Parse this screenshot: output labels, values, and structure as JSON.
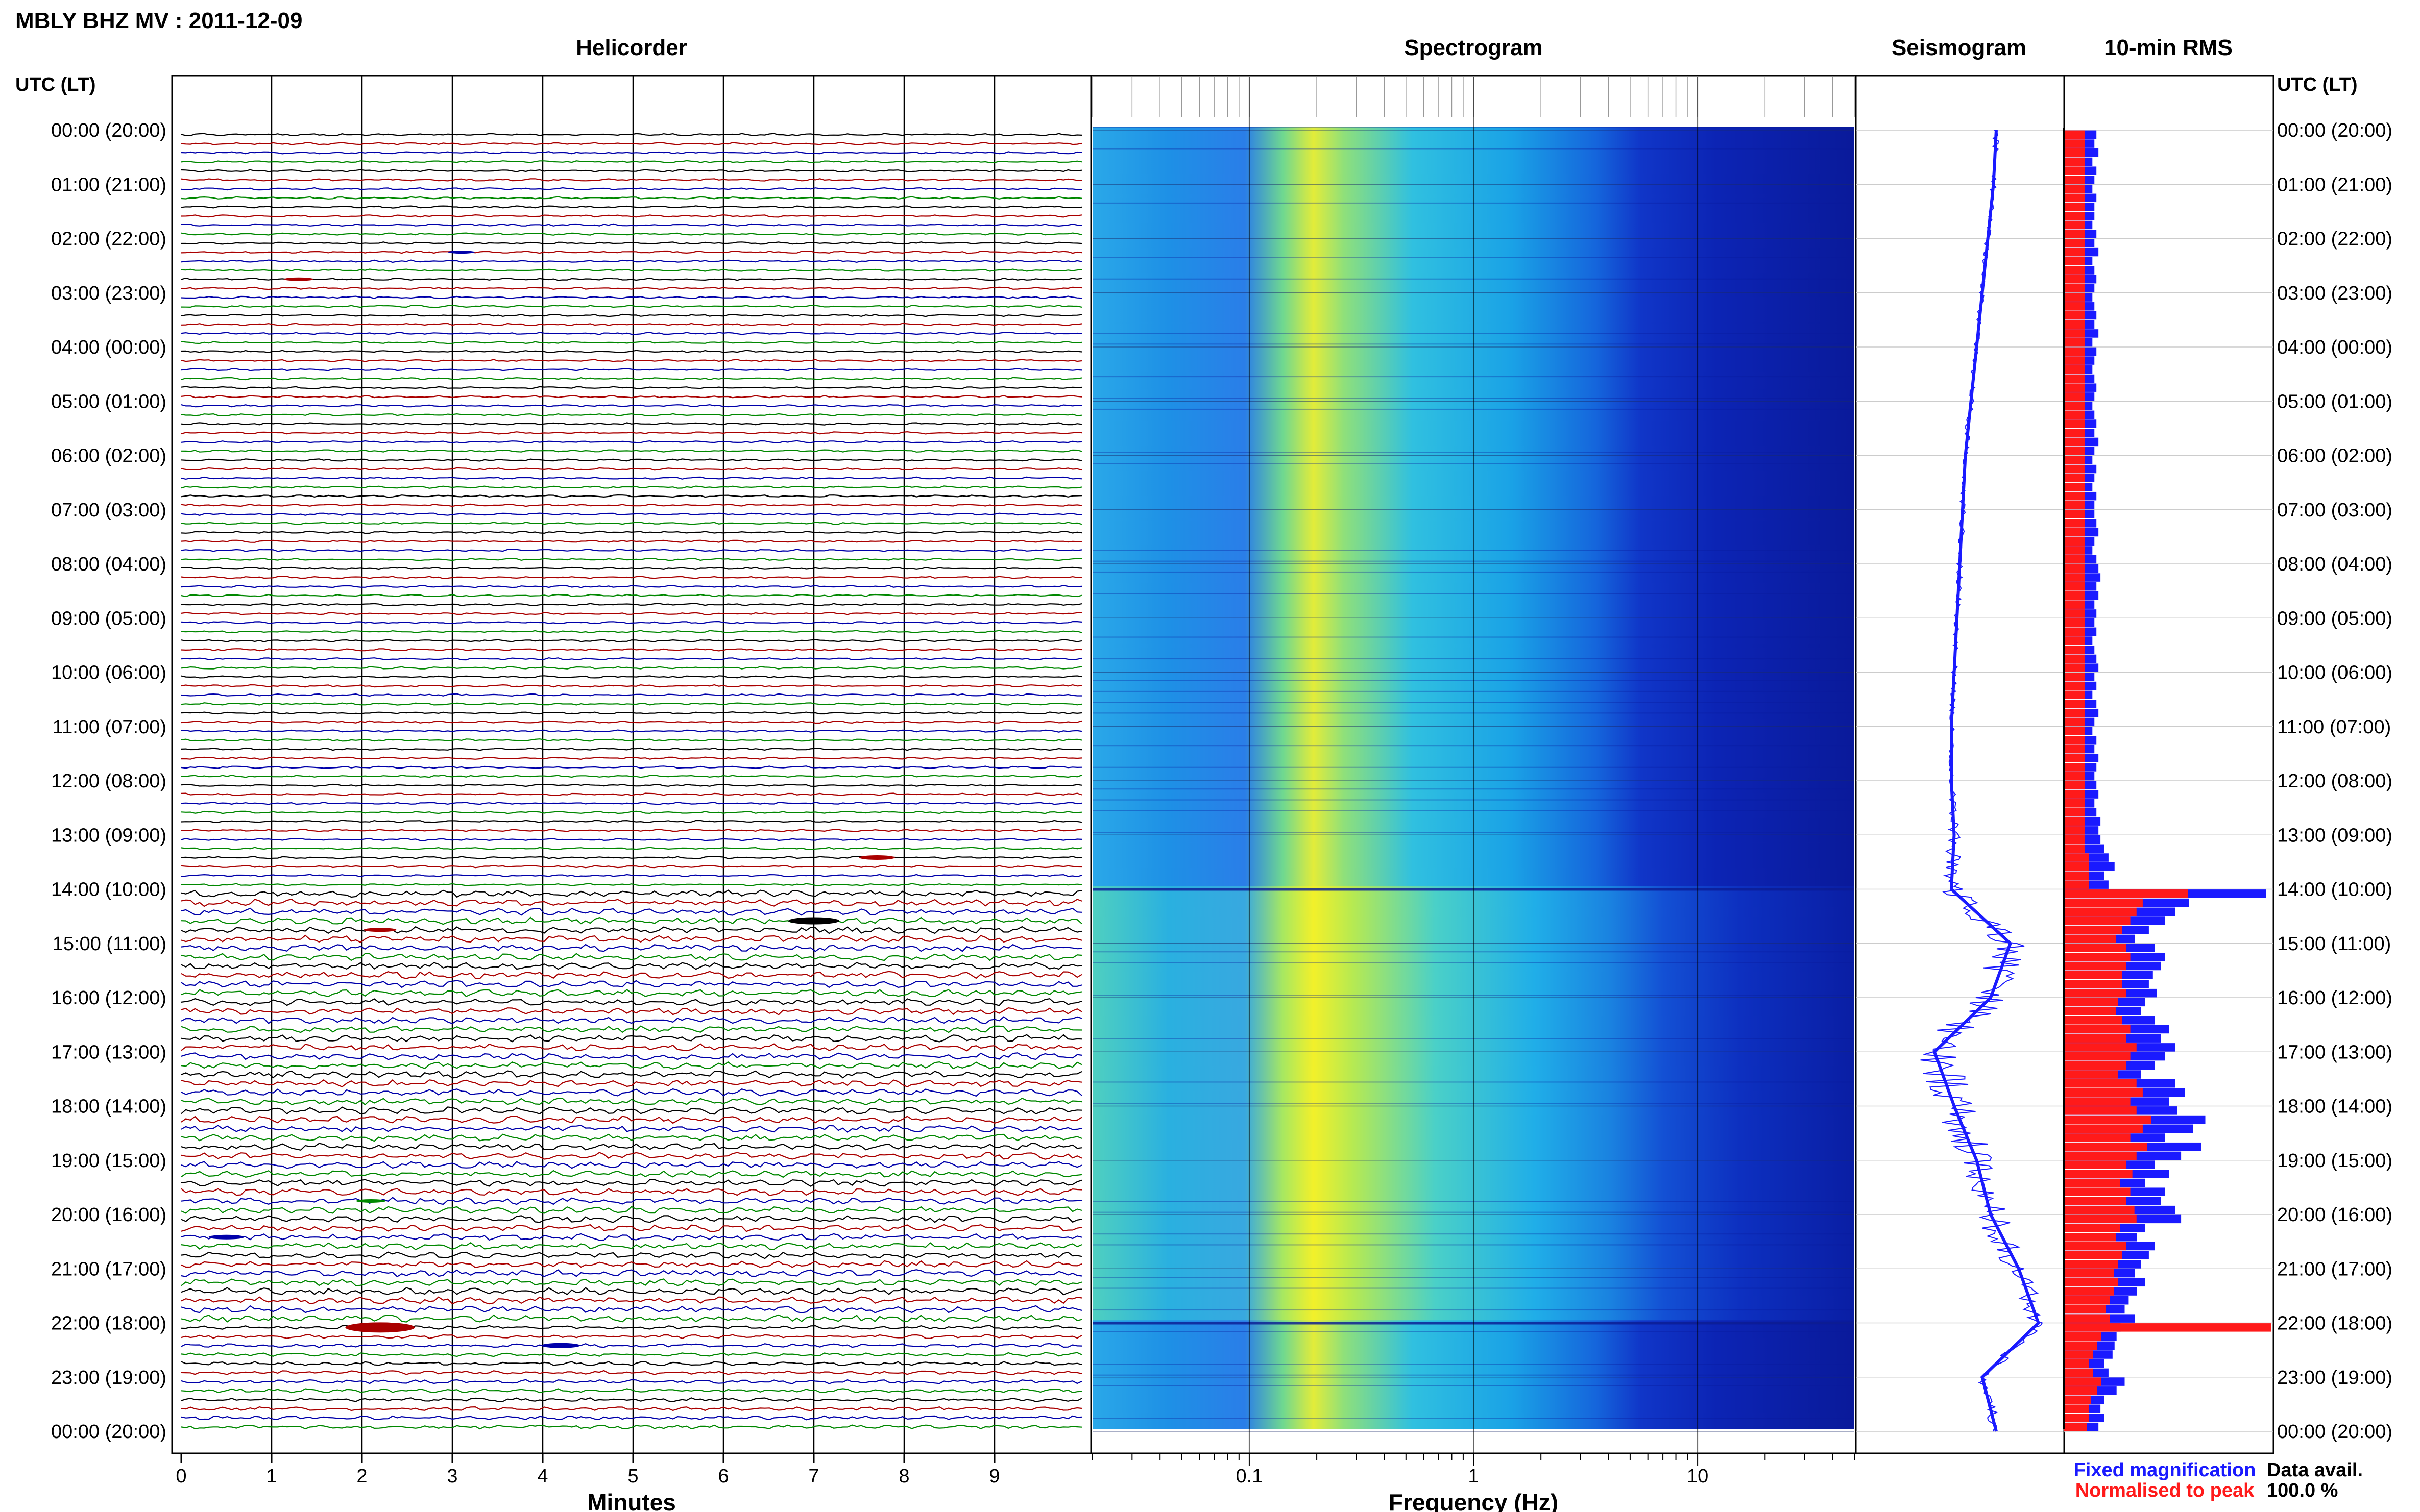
{
  "header": {
    "title": "MBLY BHZ MV : 2011-12-09",
    "utc_left": "UTC (LT)",
    "utc_right": "UTC (LT)"
  },
  "legend": {
    "fixed": "Fixed magnification",
    "normalised": "Normalised to peak",
    "avail_label": "Data avail.",
    "avail_value": "100.0 %"
  },
  "colors": {
    "fixed": "#1a1aff",
    "normalised": "#ff1a1a",
    "trace_black": "#000000",
    "trace_red": "#aa0000",
    "trace_blue": "#0000aa",
    "trace_green": "#008800"
  },
  "time_labels": [
    "00:00 (20:00)",
    "01:00 (21:00)",
    "02:00 (22:00)",
    "03:00 (23:00)",
    "04:00 (00:00)",
    "05:00 (01:00)",
    "06:00 (02:00)",
    "07:00 (03:00)",
    "08:00 (04:00)",
    "09:00 (05:00)",
    "10:00 (06:00)",
    "11:00 (07:00)",
    "12:00 (08:00)",
    "13:00 (09:00)",
    "14:00 (10:00)",
    "15:00 (11:00)",
    "16:00 (12:00)",
    "17:00 (13:00)",
    "18:00 (14:00)",
    "19:00 (15:00)",
    "20:00 (16:00)",
    "21:00 (17:00)",
    "22:00 (18:00)",
    "23:00 (19:00)",
    "00:00 (20:00)"
  ],
  "chart_data": [
    {
      "type": "line",
      "panel": "helicorder",
      "title": "Helicorder",
      "xlabel": "Minutes",
      "x_ticks": [
        "0",
        "1",
        "2",
        "3",
        "4",
        "5",
        "6",
        "7",
        "8",
        "9"
      ],
      "xlim": [
        0,
        10
      ],
      "rows": 144,
      "events": [
        {
          "row": 16,
          "minute": 1.3,
          "amplitude": 0.3,
          "color": "red"
        },
        {
          "row": 13,
          "minute": 3.1,
          "amplitude": 0.2,
          "color": "blue"
        },
        {
          "row": 80,
          "minute": 7.7,
          "amplitude": 0.5,
          "color": "red"
        },
        {
          "row": 87,
          "minute": 7.0,
          "amplitude": 1.0,
          "color": "black"
        },
        {
          "row": 88,
          "minute": 2.2,
          "amplitude": 0.4,
          "color": "red"
        },
        {
          "row": 118,
          "minute": 2.1,
          "amplitude": 0.3,
          "color": "green"
        },
        {
          "row": 122,
          "minute": 0.5,
          "amplitude": 0.5,
          "color": "blue"
        },
        {
          "row": 132,
          "minute": 2.2,
          "amplitude": 1.6,
          "color": "red"
        },
        {
          "row": 134,
          "minute": 4.2,
          "amplitude": 0.6,
          "color": "blue"
        }
      ]
    },
    {
      "type": "heatmap",
      "panel": "spectrogram",
      "title": "Spectrogram",
      "xlabel": "Frequency (Hz)",
      "x_scale": "log",
      "xlim": [
        0.02,
        50
      ],
      "x_ticks": [
        {
          "value": 0.1,
          "label": "0.1"
        },
        {
          "value": 1,
          "label": "1"
        },
        {
          "value": 10,
          "label": "10"
        }
      ],
      "peak_frequency_hz": 0.25,
      "high_activity_hours": [
        14,
        22
      ]
    },
    {
      "type": "line",
      "panel": "seismogram",
      "title": "Seismogram",
      "hourly_offset": [
        0.1,
        0.09,
        0.07,
        0.05,
        0.03,
        0.01,
        -0.01,
        -0.02,
        -0.03,
        -0.04,
        -0.05,
        -0.06,
        -0.06,
        -0.05,
        -0.06,
        0.15,
        0.08,
        -0.12,
        -0.05,
        0.03,
        0.08,
        0.18,
        0.25,
        0.05,
        0.1
      ],
      "noise": [
        0.01,
        0.01,
        0.01,
        0.01,
        0.01,
        0.01,
        0.01,
        0.01,
        0.01,
        0.01,
        0.01,
        0.01,
        0.01,
        0.02,
        0.04,
        0.06,
        0.07,
        0.08,
        0.08,
        0.06,
        0.06,
        0.05,
        0.03,
        0.02,
        0.02
      ]
    },
    {
      "type": "bar",
      "panel": "rms",
      "title": "10-min RMS",
      "orientation": "horizontal",
      "series": [
        {
          "name": "Fixed magnification",
          "color": "#1a1aff",
          "values": [
            0.16,
            0.15,
            0.17,
            0.14,
            0.16,
            0.15,
            0.14,
            0.16,
            0.15,
            0.15,
            0.14,
            0.16,
            0.15,
            0.17,
            0.14,
            0.15,
            0.16,
            0.15,
            0.14,
            0.15,
            0.16,
            0.15,
            0.17,
            0.14,
            0.16,
            0.15,
            0.14,
            0.15,
            0.16,
            0.15,
            0.14,
            0.15,
            0.16,
            0.15,
            0.17,
            0.15,
            0.14,
            0.16,
            0.15,
            0.14,
            0.16,
            0.15,
            0.15,
            0.16,
            0.17,
            0.15,
            0.14,
            0.16,
            0.17,
            0.18,
            0.16,
            0.17,
            0.15,
            0.16,
            0.15,
            0.16,
            0.14,
            0.15,
            0.16,
            0.17,
            0.15,
            0.16,
            0.14,
            0.16,
            0.17,
            0.15,
            0.14,
            0.16,
            0.15,
            0.17,
            0.16,
            0.15,
            0.16,
            0.17,
            0.15,
            0.16,
            0.18,
            0.17,
            0.18,
            0.2,
            0.22,
            0.25,
            0.2,
            0.22,
            1.0,
            0.62,
            0.55,
            0.5,
            0.42,
            0.35,
            0.45,
            0.5,
            0.48,
            0.44,
            0.42,
            0.46,
            0.4,
            0.38,
            0.45,
            0.52,
            0.48,
            0.55,
            0.5,
            0.45,
            0.38,
            0.55,
            0.6,
            0.52,
            0.56,
            0.7,
            0.64,
            0.5,
            0.68,
            0.58,
            0.45,
            0.52,
            0.4,
            0.5,
            0.48,
            0.55,
            0.58,
            0.4,
            0.36,
            0.45,
            0.42,
            0.38,
            0.35,
            0.4,
            0.36,
            0.32,
            0.3,
            0.35,
            0.28,
            0.26,
            0.25,
            0.24,
            0.2,
            0.22,
            0.3,
            0.26,
            0.2,
            0.18,
            0.2,
            0.17
          ]
        },
        {
          "name": "Normalised to peak",
          "color": "#ff1a1a",
          "values": [
            0.1,
            0.1,
            0.1,
            0.1,
            0.1,
            0.1,
            0.1,
            0.1,
            0.1,
            0.1,
            0.1,
            0.1,
            0.1,
            0.1,
            0.1,
            0.1,
            0.1,
            0.1,
            0.1,
            0.1,
            0.1,
            0.1,
            0.1,
            0.1,
            0.1,
            0.1,
            0.1,
            0.1,
            0.1,
            0.1,
            0.1,
            0.1,
            0.1,
            0.1,
            0.1,
            0.1,
            0.1,
            0.1,
            0.1,
            0.1,
            0.1,
            0.1,
            0.1,
            0.1,
            0.1,
            0.1,
            0.1,
            0.1,
            0.1,
            0.1,
            0.1,
            0.1,
            0.1,
            0.1,
            0.1,
            0.1,
            0.1,
            0.1,
            0.1,
            0.1,
            0.1,
            0.1,
            0.1,
            0.1,
            0.1,
            0.1,
            0.1,
            0.1,
            0.1,
            0.1,
            0.1,
            0.1,
            0.1,
            0.1,
            0.1,
            0.1,
            0.1,
            0.1,
            0.1,
            0.1,
            0.12,
            0.12,
            0.12,
            0.12,
            0.6,
            0.38,
            0.35,
            0.32,
            0.28,
            0.25,
            0.3,
            0.32,
            0.3,
            0.28,
            0.28,
            0.3,
            0.26,
            0.25,
            0.28,
            0.32,
            0.3,
            0.35,
            0.32,
            0.3,
            0.26,
            0.35,
            0.38,
            0.32,
            0.35,
            0.42,
            0.38,
            0.32,
            0.4,
            0.35,
            0.3,
            0.33,
            0.27,
            0.32,
            0.3,
            0.34,
            0.35,
            0.27,
            0.25,
            0.3,
            0.28,
            0.26,
            0.24,
            0.26,
            0.24,
            0.22,
            0.2,
            0.22,
            1.0,
            0.18,
            0.16,
            0.14,
            0.12,
            0.14,
            0.18,
            0.16,
            0.13,
            0.12,
            0.12,
            0.11
          ]
        }
      ]
    }
  ]
}
